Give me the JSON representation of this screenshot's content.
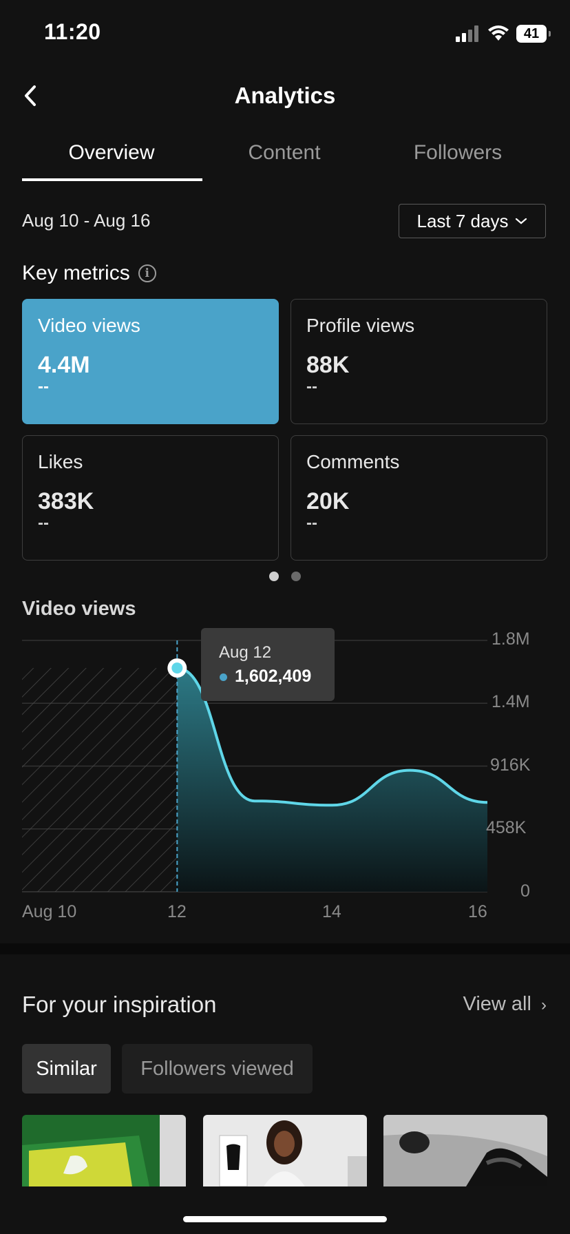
{
  "status_bar": {
    "time": "11:20",
    "battery": "41"
  },
  "header": {
    "title": "Analytics"
  },
  "tabs": [
    {
      "label": "Overview",
      "active": true
    },
    {
      "label": "Content",
      "active": false
    },
    {
      "label": "Followers",
      "active": false
    }
  ],
  "date_range": "Aug 10 - Aug 16",
  "date_filter": {
    "selected": "Last 7 days"
  },
  "key_metrics": {
    "title": "Key metrics",
    "cards": [
      {
        "label": "Video views",
        "value": "4.4M",
        "delta": "--",
        "selected": true
      },
      {
        "label": "Profile views",
        "value": "88K",
        "delta": "--",
        "selected": false
      },
      {
        "label": "Likes",
        "value": "383K",
        "delta": "--",
        "selected": false
      },
      {
        "label": "Comments",
        "value": "20K",
        "delta": "--",
        "selected": false
      }
    ],
    "page": 1,
    "pages": 2
  },
  "chart_data": {
    "type": "area",
    "title": "Video views",
    "x": [
      "Aug 10",
      "Aug 11",
      "Aug 12",
      "Aug 13",
      "Aug 14",
      "Aug 15",
      "Aug 16"
    ],
    "values": [
      null,
      null,
      1602409,
      650000,
      620000,
      870000,
      640000
    ],
    "x_tick_labels": [
      "Aug 10",
      "12",
      "14",
      "16"
    ],
    "y_tick_labels": [
      "1.8M",
      "1.4M",
      "916K",
      "458K",
      "0"
    ],
    "ylim": [
      0,
      1800000
    ],
    "grid": true,
    "line_color": "#5fd6e8",
    "tooltip": {
      "date": "Aug 12",
      "value": "1,602,409"
    }
  },
  "inspiration": {
    "title": "For your inspiration",
    "view_all": "View all",
    "chips": [
      {
        "label": "Similar",
        "active": true
      },
      {
        "label": "Followers viewed",
        "active": false
      }
    ]
  },
  "colors": {
    "accent": "#4aa3c9",
    "background": "#121212"
  }
}
